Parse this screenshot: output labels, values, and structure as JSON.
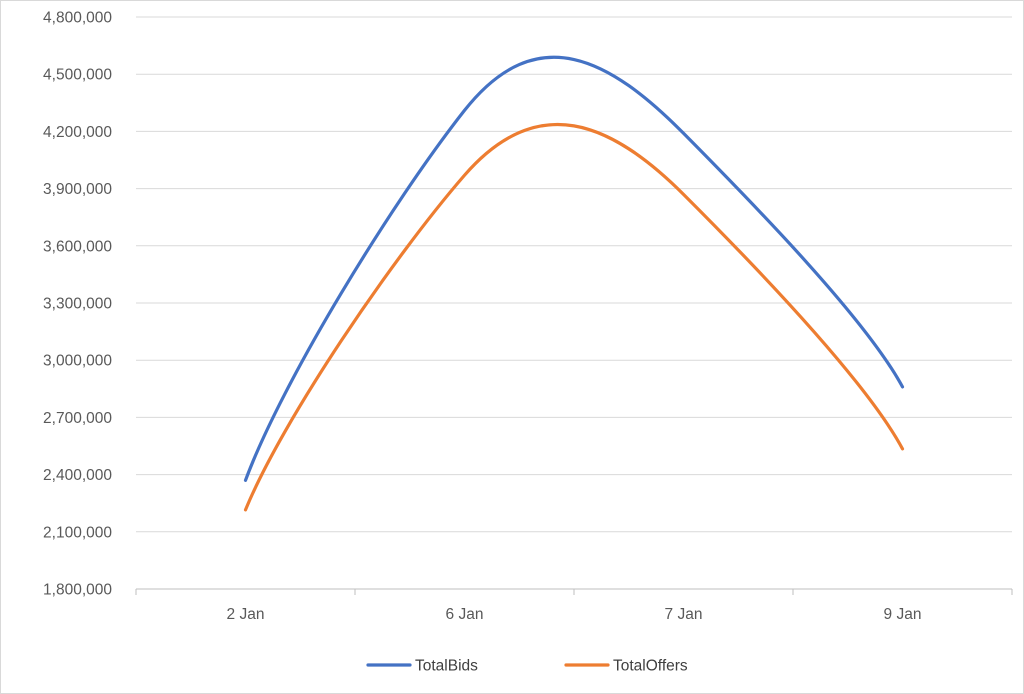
{
  "chart_data": {
    "type": "line",
    "smooth": true,
    "title": "",
    "xlabel": "",
    "ylabel": "",
    "categories": [
      "2 Jan",
      "6 Jan",
      "7 Jan",
      "9 Jan"
    ],
    "ylim": [
      1800000,
      4800000
    ],
    "yticks": [
      1800000,
      2100000,
      2400000,
      2700000,
      3000000,
      3300000,
      3600000,
      3900000,
      4200000,
      4500000,
      4800000
    ],
    "ytick_labels": [
      "1,800,000",
      "2,100,000",
      "2,400,000",
      "2,700,000",
      "3,000,000",
      "3,300,000",
      "3,600,000",
      "3,900,000",
      "4,200,000",
      "4,500,000",
      "4,800,000"
    ],
    "grid": "horizontal",
    "legend": "bottom",
    "series": [
      {
        "name": "TotalBids",
        "color": "#4472C4",
        "values": [
          2370000,
          4310000,
          4190000,
          2860000
        ]
      },
      {
        "name": "TotalOffers",
        "color": "#ED7D31",
        "values": [
          2215000,
          3970000,
          3870000,
          2535000
        ]
      }
    ]
  }
}
